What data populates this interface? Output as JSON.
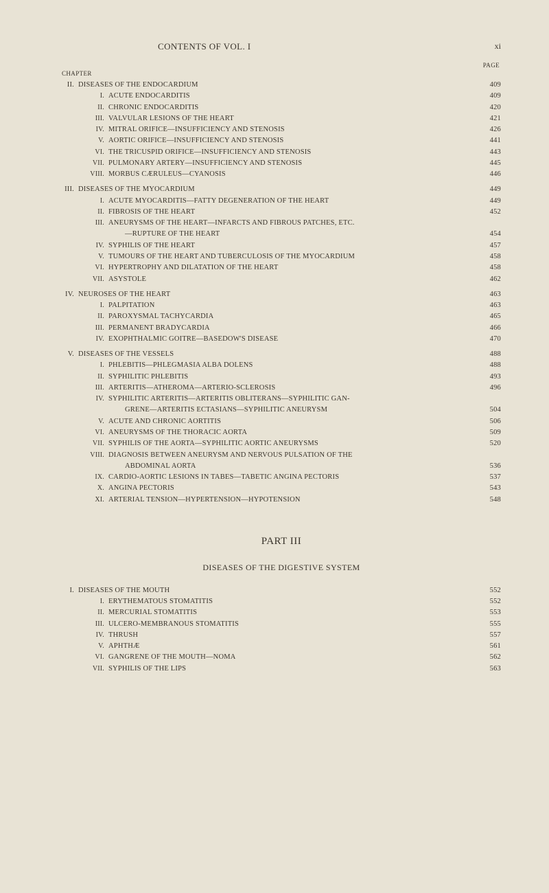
{
  "page": {
    "header_title": "CONTENTS OF VOL. I",
    "page_number": "xi",
    "chapter_word": "CHAPTER",
    "page_word": "PAGE",
    "part_heading": "PART III",
    "part_subheading": "DISEASES OF THE DIGESTIVE SYSTEM",
    "colors": {
      "background": "#e8e3d5",
      "text": "#3a342c"
    }
  },
  "toc": [
    {
      "lvl": "chapter",
      "roman": "II.",
      "title": "DISEASES OF THE ENDOCARDIUM",
      "page": "409"
    },
    {
      "lvl": "sub",
      "roman": "I.",
      "title": "ACUTE ENDOCARDITIS",
      "page": "409"
    },
    {
      "lvl": "sub",
      "roman": "II.",
      "title": "CHRONIC ENDOCARDITIS",
      "page": "420"
    },
    {
      "lvl": "sub",
      "roman": "III.",
      "title": "VALVULAR LESIONS OF THE HEART",
      "page": "421"
    },
    {
      "lvl": "sub",
      "roman": "IV.",
      "title": "MITRAL ORIFICE—INSUFFICIENCY AND STENOSIS",
      "page": "426"
    },
    {
      "lvl": "sub",
      "roman": "V.",
      "title": "AORTIC ORIFICE—INSUFFICIENCY AND STENOSIS",
      "page": "441"
    },
    {
      "lvl": "sub",
      "roman": "VI.",
      "title": "THE TRICUSPID ORIFICE—INSUFFICIENCY AND STENOSIS",
      "page": "443"
    },
    {
      "lvl": "sub",
      "roman": "VII.",
      "title": "PULMONARY ARTERY—INSUFFICIENCY AND STENOSIS",
      "page": "445"
    },
    {
      "lvl": "sub",
      "roman": "VIII.",
      "title": "MORBUS CÆRULEUS—CYANOSIS",
      "page": "446"
    },
    {
      "lvl": "chapter",
      "roman": "III.",
      "title": "DISEASES OF THE MYOCARDIUM",
      "page": "449",
      "gap": true
    },
    {
      "lvl": "sub",
      "roman": "I.",
      "title": "ACUTE MYOCARDITIS—FATTY DEGENERATION OF THE HEART",
      "page": "449"
    },
    {
      "lvl": "sub",
      "roman": "II.",
      "title": "FIBROSIS OF THE HEART",
      "page": "452"
    },
    {
      "lvl": "sub",
      "roman": "III.",
      "title": "ANEURYSMS OF THE HEART—INFARCTS AND FIBROUS PATCHES, ETC.",
      "page": ""
    },
    {
      "lvl": "cont",
      "roman": "",
      "title": "—RUPTURE OF THE HEART",
      "page": "454"
    },
    {
      "lvl": "sub",
      "roman": "IV.",
      "title": "SYPHILIS OF THE HEART",
      "page": "457"
    },
    {
      "lvl": "sub",
      "roman": "V.",
      "title": "TUMOURS OF THE HEART AND TUBERCULOSIS OF THE MYOCARDIUM",
      "page": "458"
    },
    {
      "lvl": "sub",
      "roman": "VI.",
      "title": "HYPERTROPHY AND DILATATION OF THE HEART",
      "page": "458"
    },
    {
      "lvl": "sub",
      "roman": "VII.",
      "title": "ASYSTOLE",
      "page": "462"
    },
    {
      "lvl": "chapter",
      "roman": "IV.",
      "title": "NEUROSES OF THE HEART",
      "page": "463",
      "gap": true
    },
    {
      "lvl": "sub",
      "roman": "I.",
      "title": "PALPITATION",
      "page": "463"
    },
    {
      "lvl": "sub",
      "roman": "II.",
      "title": "PAROXYSMAL TACHYCARDIA",
      "page": "465"
    },
    {
      "lvl": "sub",
      "roman": "III.",
      "title": "PERMANENT BRADYCARDIA",
      "page": "466"
    },
    {
      "lvl": "sub",
      "roman": "IV.",
      "title": "EXOPHTHALMIC GOITRE—BASEDOW'S DISEASE",
      "page": "470"
    },
    {
      "lvl": "chapter",
      "roman": "V.",
      "title": "DISEASES OF THE VESSELS",
      "page": "488",
      "gap": true
    },
    {
      "lvl": "sub",
      "roman": "I.",
      "title": "PHLEBITIS—PHLEGMASIA ALBA DOLENS",
      "page": "488"
    },
    {
      "lvl": "sub",
      "roman": "II.",
      "title": "SYPHILITIC PHLEBITIS",
      "page": "493"
    },
    {
      "lvl": "sub",
      "roman": "III.",
      "title": "ARTERITIS—ATHEROMA—ARTERIO-SCLEROSIS",
      "page": "496"
    },
    {
      "lvl": "sub",
      "roman": "IV.",
      "title": "SYPHILITIC ARTERITIS—ARTERITIS OBLITERANS—SYPHILITIC GAN-",
      "page": ""
    },
    {
      "lvl": "cont",
      "roman": "",
      "title": "GRENE—ARTERITIS ECTASIANS—SYPHILITIC ANEURYSM",
      "page": "504"
    },
    {
      "lvl": "sub",
      "roman": "V.",
      "title": "ACUTE AND CHRONIC AORTITIS",
      "page": "506"
    },
    {
      "lvl": "sub",
      "roman": "VI.",
      "title": "ANEURYSMS OF THE THORACIC AORTA",
      "page": "509"
    },
    {
      "lvl": "sub",
      "roman": "VII.",
      "title": "SYPHILIS OF THE AORTA—SYPHILITIC AORTIC ANEURYSMS",
      "page": "520"
    },
    {
      "lvl": "sub",
      "roman": "VIII.",
      "title": "DIAGNOSIS BETWEEN ANEURYSM AND NERVOUS PULSATION OF THE",
      "page": ""
    },
    {
      "lvl": "cont",
      "roman": "",
      "title": "ABDOMINAL AORTA",
      "page": "536"
    },
    {
      "lvl": "sub",
      "roman": "IX.",
      "title": "CARDIO-AORTIC LESIONS IN TABES—TABETIC ANGINA PECTORIS",
      "page": "537"
    },
    {
      "lvl": "sub",
      "roman": "X.",
      "title": "ANGINA PECTORIS",
      "page": "543"
    },
    {
      "lvl": "sub",
      "roman": "XI.",
      "title": "ARTERIAL TENSION—HYPERTENSION—HYPOTENSION",
      "page": "548"
    }
  ],
  "toc_part3": [
    {
      "lvl": "chapter",
      "roman": "I.",
      "title": "DISEASES OF THE MOUTH",
      "page": "552"
    },
    {
      "lvl": "sub",
      "roman": "I.",
      "title": "ERYTHEMATOUS STOMATITIS",
      "page": "552"
    },
    {
      "lvl": "sub",
      "roman": "II.",
      "title": "MERCURIAL STOMATITIS",
      "page": "553"
    },
    {
      "lvl": "sub",
      "roman": "III.",
      "title": "ULCERO-MEMBRANOUS STOMATITIS",
      "page": "555"
    },
    {
      "lvl": "sub",
      "roman": "IV.",
      "title": "THRUSH",
      "page": "557"
    },
    {
      "lvl": "sub",
      "roman": "V.",
      "title": "APHTHÆ",
      "page": "561"
    },
    {
      "lvl": "sub",
      "roman": "VI.",
      "title": "GANGRENE OF THE MOUTH—NOMA",
      "page": "562"
    },
    {
      "lvl": "sub",
      "roman": "VII.",
      "title": "SYPHILIS OF THE LIPS",
      "page": "563"
    }
  ]
}
